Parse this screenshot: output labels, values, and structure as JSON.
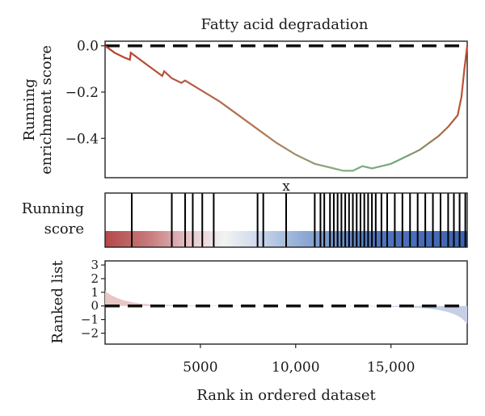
{
  "chart_data": {
    "type": "line",
    "title": "Fatty acid degradation",
    "xlabel": "Rank in ordered dataset",
    "xlim": [
      0,
      19000
    ],
    "x_ticks": [
      5000,
      10000,
      15000
    ],
    "x_tick_labels": [
      "5000",
      "10,000",
      "15,000"
    ],
    "panels": [
      {
        "id": "enrichment",
        "ylabel_lines": [
          "Running",
          "enrichment score"
        ],
        "ylim": [
          -0.57,
          0.02
        ],
        "y_ticks": [
          0.0,
          -0.2,
          -0.4
        ],
        "y_tick_labels": [
          "0.0",
          "−0.2",
          "−0.4"
        ],
        "reference_line": 0,
        "series": [
          {
            "x": [
              0,
              500,
              1000,
              1300,
              1350,
              2000,
              2500,
              3000,
              3100,
              3500,
              4000,
              4200,
              5000,
              6000,
              7000,
              8000,
              9000,
              10000,
              11000,
              12000,
              12500,
              13000,
              13500,
              14000,
              14500,
              15000,
              15500,
              16000,
              16500,
              17000,
              17500,
              18000,
              18500,
              18700,
              18850,
              19000
            ],
            "y": [
              0.0,
              -0.03,
              -0.05,
              -0.06,
              -0.03,
              -0.07,
              -0.1,
              -0.13,
              -0.11,
              -0.14,
              -0.16,
              -0.15,
              -0.19,
              -0.24,
              -0.3,
              -0.36,
              -0.42,
              -0.47,
              -0.51,
              -0.53,
              -0.54,
              -0.54,
              -0.52,
              -0.53,
              -0.52,
              -0.51,
              -0.49,
              -0.47,
              -0.45,
              -0.42,
              -0.39,
              -0.35,
              -0.3,
              -0.22,
              -0.1,
              0.0
            ]
          }
        ]
      },
      {
        "id": "hits",
        "ylabel_lines": [
          "Running",
          "score"
        ],
        "hit_positions": [
          1400,
          3500,
          4200,
          4600,
          5100,
          5700,
          8000,
          8300,
          9500,
          11000,
          11300,
          11500,
          11800,
          12000,
          12200,
          12400,
          12600,
          12800,
          13000,
          13200,
          13400,
          13600,
          13800,
          14000,
          14200,
          14500,
          14800,
          15200,
          15600,
          16000,
          16400,
          16800,
          17200,
          17600,
          18000,
          18300,
          18600,
          18900
        ],
        "marker_label": "x",
        "marker_x": 9500
      },
      {
        "id": "ranked",
        "ylabel_lines": [
          "Ranked list"
        ],
        "ylim": [
          -2.8,
          3.3
        ],
        "y_ticks": [
          3,
          2,
          1,
          0,
          -1,
          -2
        ],
        "y_tick_labels": [
          "3",
          "2",
          "1",
          "0",
          "−1",
          "−2"
        ],
        "reference_line": 0,
        "series": [
          {
            "x": [
              0,
              300,
              600,
              1000,
              1500,
              2000,
              3000,
              5000,
              8000,
              10000,
              12000,
              14000,
              16000,
              17000,
              17500,
              18000,
              18400,
              18700,
              19000
            ],
            "y": [
              1.1,
              0.8,
              0.6,
              0.4,
              0.25,
              0.15,
              0.08,
              0.03,
              0.01,
              0.0,
              -0.01,
              -0.03,
              -0.1,
              -0.2,
              -0.3,
              -0.45,
              -0.65,
              -0.9,
              -1.3
            ]
          }
        ]
      }
    ]
  }
}
